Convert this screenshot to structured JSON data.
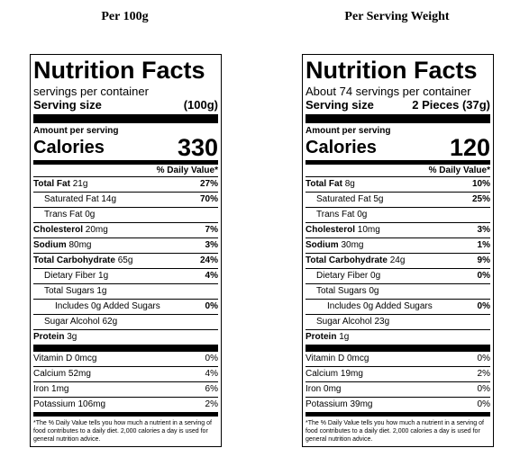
{
  "headers": {
    "left": "Per 100g",
    "right": "Per Serving Weight"
  },
  "left": {
    "title": "Nutrition Facts",
    "servings": "servings per container",
    "serving_size_label": "Serving size",
    "serving_size_value": "(100g)",
    "amount_per_serving": "Amount per serving",
    "calories_label": "Calories",
    "calories_value": "330",
    "dv_header": "% Daily Value*",
    "rows": [
      {
        "label": "Total Fat",
        "amount": "21g",
        "dv": "27%"
      },
      {
        "label": "Saturated Fat",
        "amount": "14g",
        "dv": "70%"
      },
      {
        "label": "Trans Fat",
        "amount": "0g",
        "dv": ""
      },
      {
        "label": "Cholesterol",
        "amount": "20mg",
        "dv": "7%"
      },
      {
        "label": "Sodium",
        "amount": "80mg",
        "dv": "3%"
      },
      {
        "label": "Total Carbohydrate",
        "amount": "65g",
        "dv": "24%"
      },
      {
        "label": "Dietary Fiber",
        "amount": "1g",
        "dv": "4%"
      },
      {
        "label": "Total Sugars",
        "amount": "1g",
        "dv": ""
      },
      {
        "label": "Includes 0g Added Sugars",
        "amount": "",
        "dv": "0%"
      },
      {
        "label": "Sugar Alcohol",
        "amount": "62g",
        "dv": ""
      },
      {
        "label": "Protein",
        "amount": "3g",
        "dv": ""
      }
    ],
    "vitamins": [
      {
        "label": "Vitamin D 0mcg",
        "dv": "0%"
      },
      {
        "label": "Calcium 52mg",
        "dv": "4%"
      },
      {
        "label": "Iron 1mg",
        "dv": "6%"
      },
      {
        "label": "Potassium 106mg",
        "dv": "2%"
      }
    ],
    "footnote": "*The % Daily Value tells you how much a nutrient in a serving of food contributes to a daily diet. 2,000 calories a day is used for general nutrition advice."
  },
  "right": {
    "title": "Nutrition Facts",
    "servings": "About 74 servings per container",
    "serving_size_label": "Serving size",
    "serving_size_value": "2 Pieces (37g)",
    "amount_per_serving": "Amount per serving",
    "calories_label": "Calories",
    "calories_value": "120",
    "dv_header": "% Daily Value*",
    "rows": [
      {
        "label": "Total Fat",
        "amount": "8g",
        "dv": "10%"
      },
      {
        "label": "Saturated Fat",
        "amount": "5g",
        "dv": "25%"
      },
      {
        "label": "Trans Fat",
        "amount": "0g",
        "dv": ""
      },
      {
        "label": "Cholesterol",
        "amount": "10mg",
        "dv": "3%"
      },
      {
        "label": "Sodium",
        "amount": "30mg",
        "dv": "1%"
      },
      {
        "label": "Total Carbohydrate",
        "amount": "24g",
        "dv": "9%"
      },
      {
        "label": "Dietary Fiber",
        "amount": "0g",
        "dv": "0%"
      },
      {
        "label": "Total Sugars",
        "amount": "0g",
        "dv": ""
      },
      {
        "label": "Includes 0g Added Sugars",
        "amount": "",
        "dv": "0%"
      },
      {
        "label": "Sugar Alcohol",
        "amount": "23g",
        "dv": ""
      },
      {
        "label": "Protein",
        "amount": "1g",
        "dv": ""
      }
    ],
    "vitamins": [
      {
        "label": "Vitamin D 0mcg",
        "dv": "0%"
      },
      {
        "label": "Calcium 19mg",
        "dv": "2%"
      },
      {
        "label": "Iron 0mg",
        "dv": "0%"
      },
      {
        "label": "Potassium 39mg",
        "dv": "0%"
      }
    ],
    "footnote": "*The % Daily Value tells you how much a nutrient in a serving of food contributes to a daily diet. 2,000 calories a day is used for general nutrition advice."
  }
}
